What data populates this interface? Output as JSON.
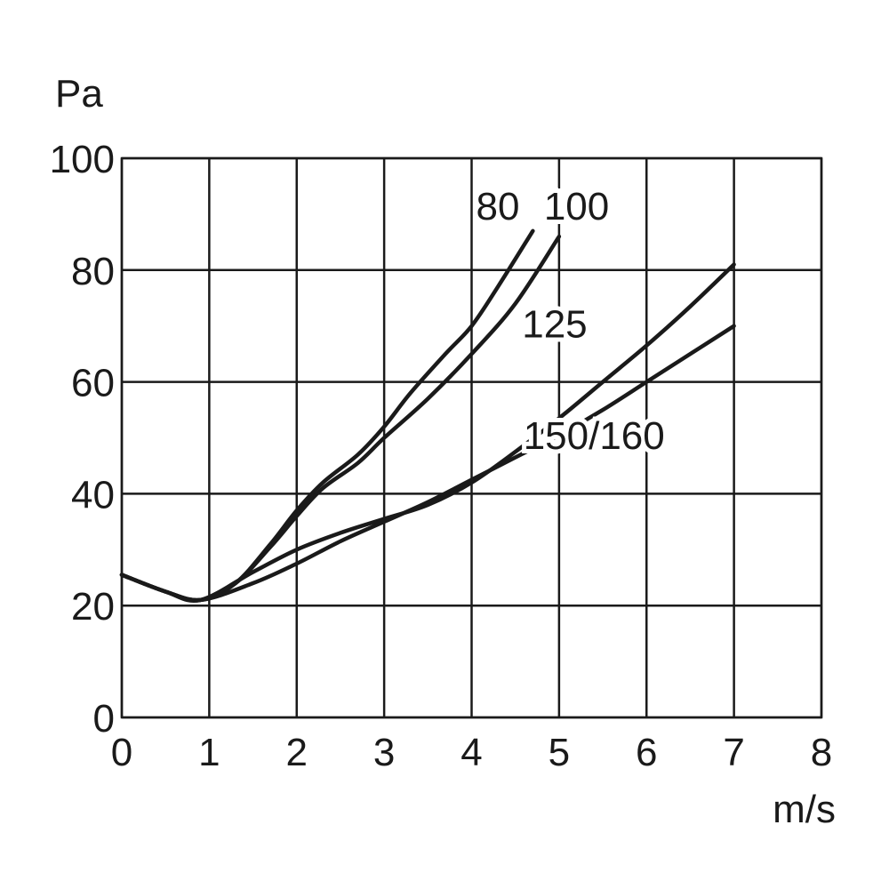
{
  "chart_data": {
    "type": "line",
    "xlabel": "m/s",
    "ylabel": "Pa",
    "xlim": [
      0,
      8
    ],
    "ylim": [
      0,
      100
    ],
    "x_ticks": [
      "0",
      "1",
      "2",
      "3",
      "4",
      "5",
      "6",
      "7",
      "8"
    ],
    "y_ticks": [
      "0",
      "20",
      "40",
      "60",
      "80",
      "100"
    ],
    "grid": true,
    "series": [
      {
        "name": "80",
        "x": [
          0,
          0.5,
          0.9,
          1.3,
          1.7,
          2.0,
          2.3,
          2.7,
          3.0,
          3.3,
          3.7,
          4.0,
          4.3,
          4.7
        ],
        "y": [
          25.5,
          22.5,
          21,
          24,
          31,
          37,
          42,
          47,
          52,
          58,
          65,
          70,
          77,
          87
        ],
        "label_pos": [
          4.3,
          89
        ]
      },
      {
        "name": "100",
        "x": [
          0,
          0.5,
          0.9,
          1.3,
          1.7,
          2.0,
          2.3,
          2.7,
          3.0,
          3.5,
          4.0,
          4.5,
          5.0
        ],
        "y": [
          25.5,
          22.5,
          21,
          24,
          30.5,
          36,
          41,
          45.5,
          50,
          57,
          65,
          74,
          86
        ],
        "label_pos": [
          5.2,
          89
        ]
      },
      {
        "name": "125",
        "x": [
          0,
          0.5,
          0.9,
          1.5,
          2.0,
          2.5,
          3.0,
          3.5,
          4.0,
          4.5,
          5.0,
          5.5,
          6.0,
          6.5,
          7.0
        ],
        "y": [
          25.5,
          22.5,
          21,
          26,
          30,
          33,
          35.5,
          38,
          42,
          47.5,
          53.5,
          60,
          66.5,
          73.5,
          81
        ],
        "label_pos": [
          4.95,
          68
        ]
      },
      {
        "name": "150/160",
        "x": [
          0,
          0.5,
          0.9,
          1.5,
          2.0,
          2.5,
          3.0,
          3.5,
          4.0,
          4.5,
          5.0,
          5.5,
          6.0,
          6.5,
          7.0
        ],
        "y": [
          25.5,
          22.5,
          21,
          24,
          27.5,
          31.5,
          35,
          38.5,
          42.5,
          46.5,
          50.5,
          55,
          60,
          65,
          70
        ],
        "label_pos": [
          5.4,
          48
        ]
      }
    ]
  }
}
